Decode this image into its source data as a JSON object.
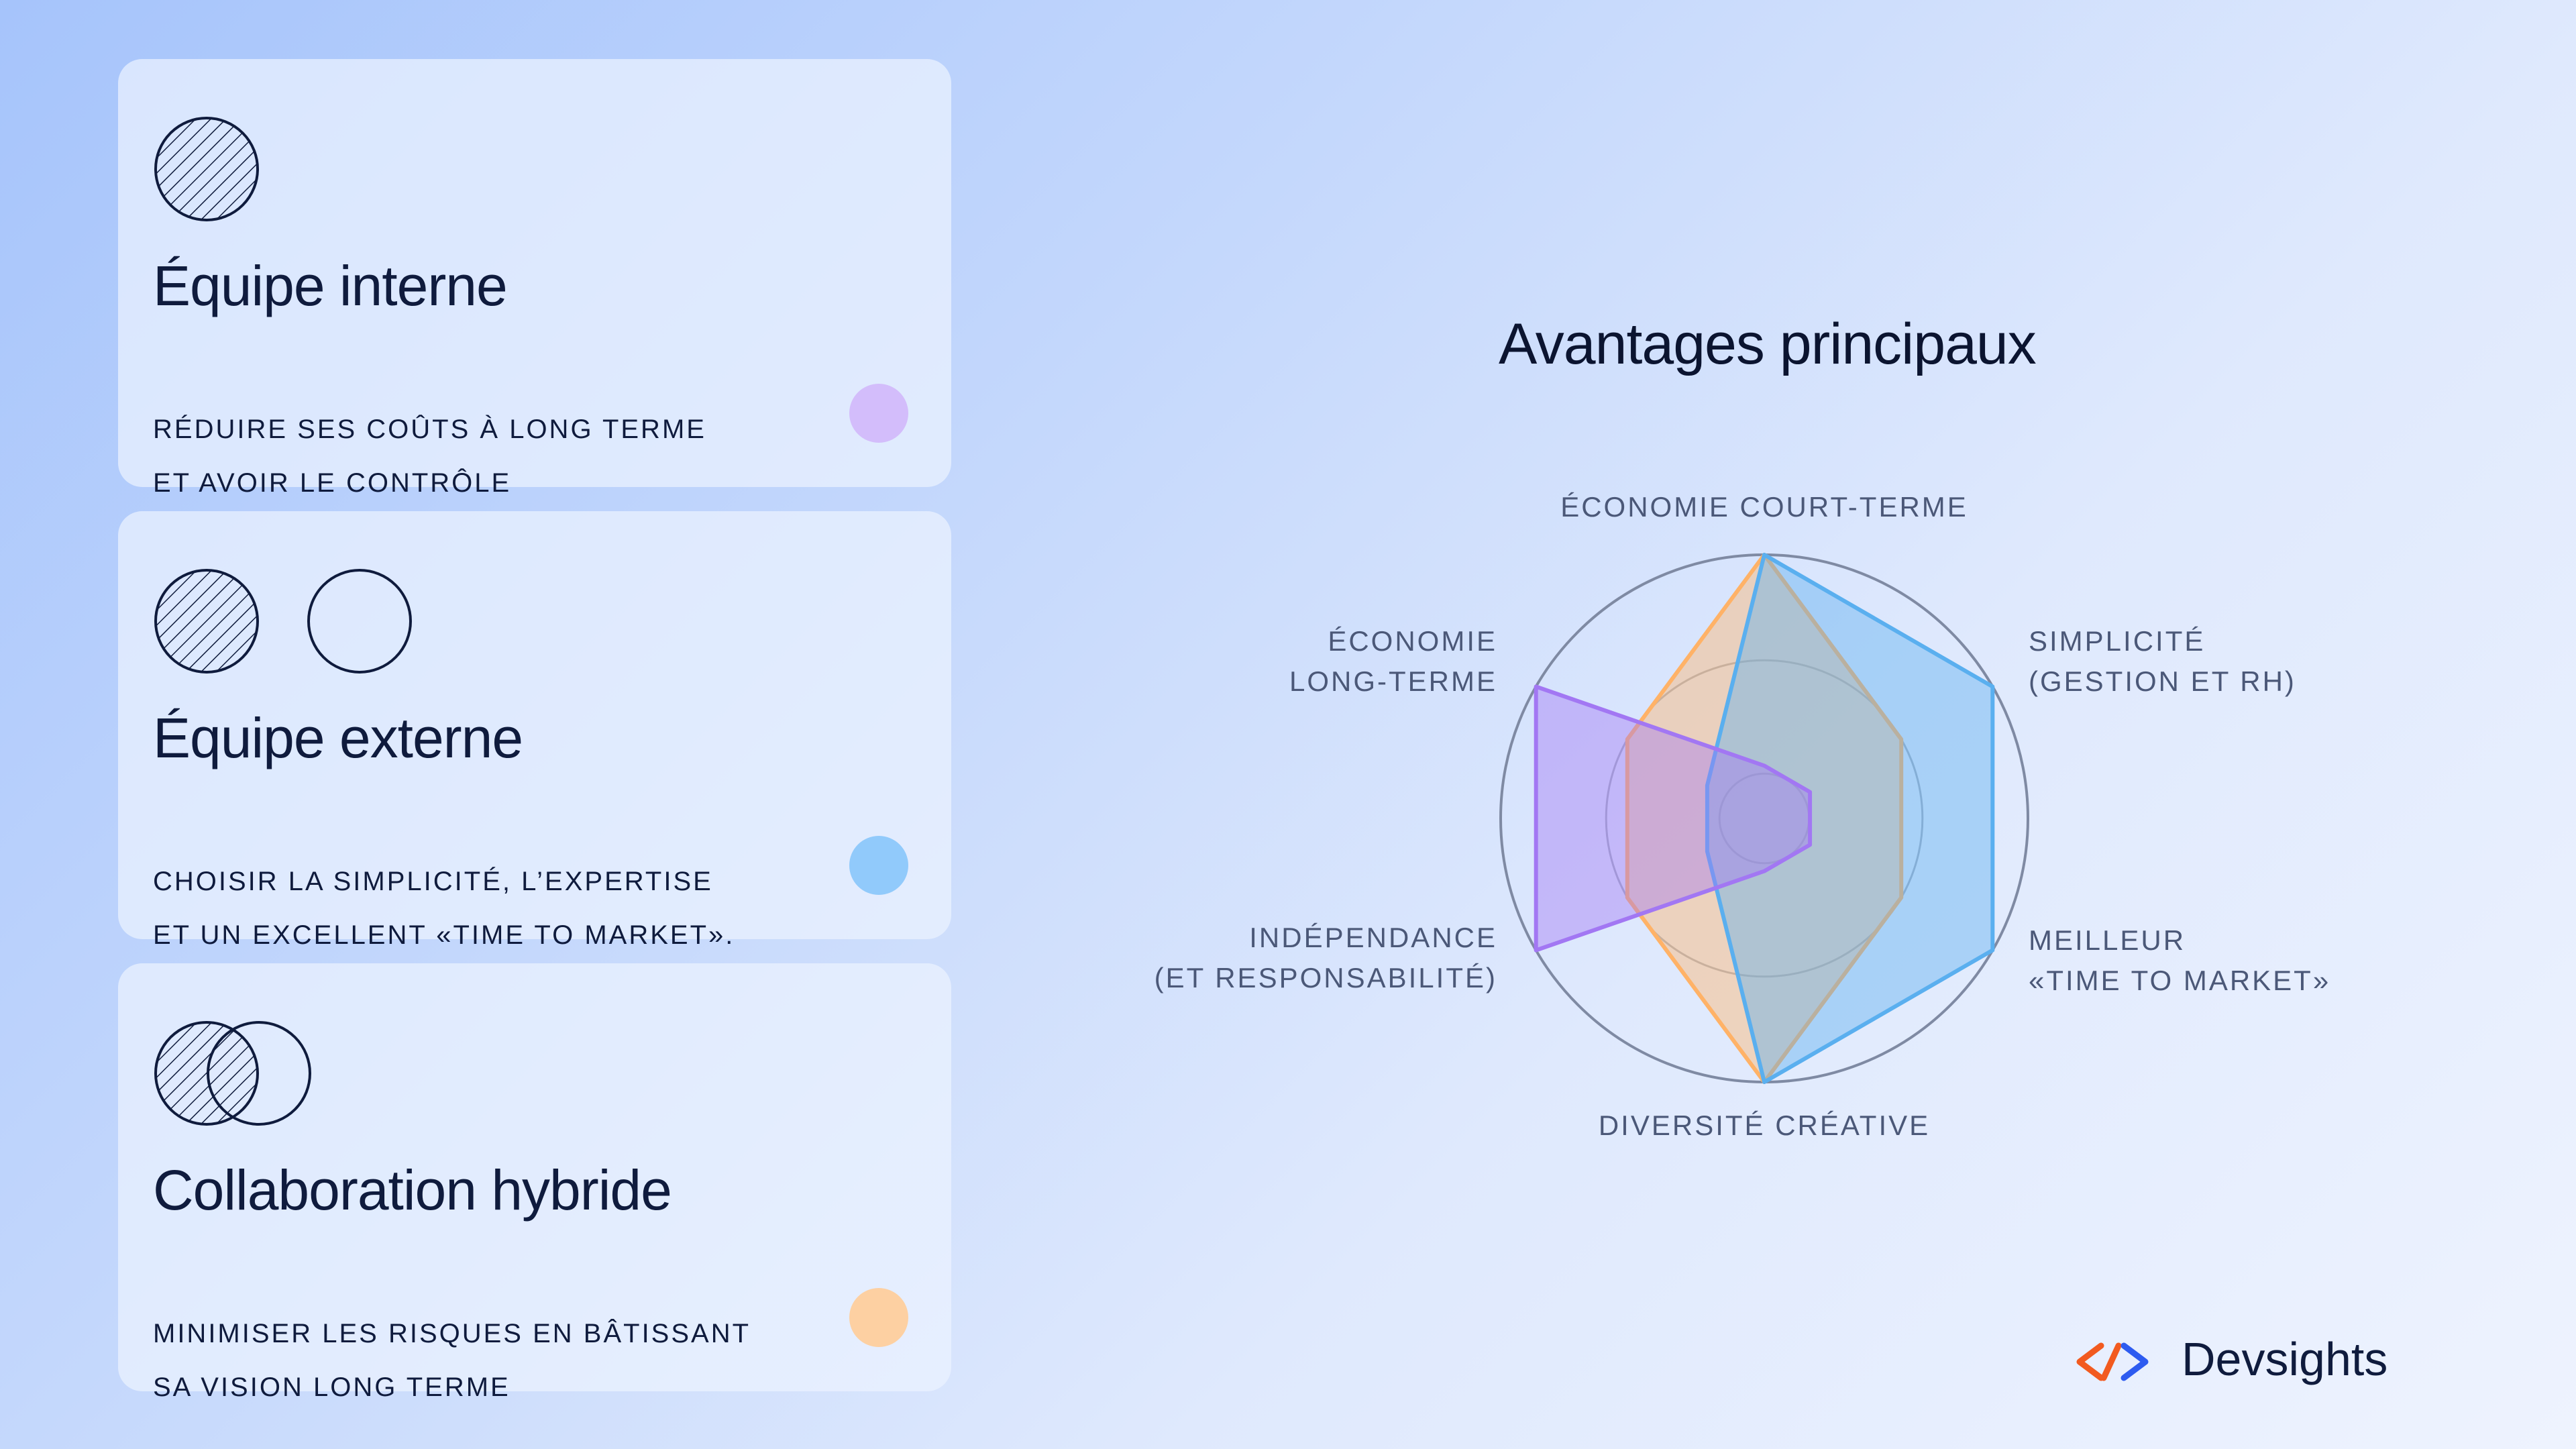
{
  "cards": [
    {
      "title": "Équipe interne",
      "line1": "RÉDUIRE SES COÛTS À LONG TERME",
      "line2": "ET AVOIR LE CONTRÔLE",
      "dot_color": "#d3bdfb",
      "icon": "hatched-circle-icon"
    },
    {
      "title": "Équipe externe",
      "line1": "CHOISIR LA SIMPLICITÉ, L’EXPERTISE",
      "line2": "ET UN EXCELLENT «TIME TO MARKET».",
      "dot_color": "#91cafb",
      "icon": "hatched-and-empty-circles-icon"
    },
    {
      "title": "Collaboration hybride",
      "line1": "MINIMISER LES RISQUES EN BÂTISSANT",
      "line2": "SA VISION LONG TERME",
      "dot_color": "#fdd0a2",
      "icon": "overlapping-circles-icon"
    }
  ],
  "chart_data": {
    "type": "radar",
    "title": "Avantages principaux",
    "axes": [
      [
        "ÉCONOMIE COURT-TERME"
      ],
      [
        "SIMPLICITÉ",
        "(GESTION ET RH)"
      ],
      [
        "MEILLEUR",
        "«TIME TO MARKET»"
      ],
      [
        "DIVERSITÉ CRÉATIVE"
      ],
      [
        "INDÉPENDANCE",
        "(ET RESPONSABILITÉ)"
      ],
      [
        "ÉCONOMIE",
        "LONG-TERME"
      ]
    ],
    "range": [
      0,
      1
    ],
    "grid_levels": [
      0.6,
      1
    ],
    "series": [
      {
        "color": "#ffb267",
        "values": [
          1,
          0.6,
          0.6,
          1,
          0.6,
          0.6
        ]
      },
      {
        "color": "#5aafef",
        "values": [
          1,
          1,
          1,
          1,
          0.25,
          0.25
        ]
      },
      {
        "color": "#a277f3",
        "values": [
          0.2,
          0.2,
          0.2,
          0.2,
          1,
          1
        ]
      }
    ]
  },
  "brand": {
    "name": "Devsights",
    "logo_colors": [
      "#f25a1f",
      "#2d5bf0"
    ]
  }
}
